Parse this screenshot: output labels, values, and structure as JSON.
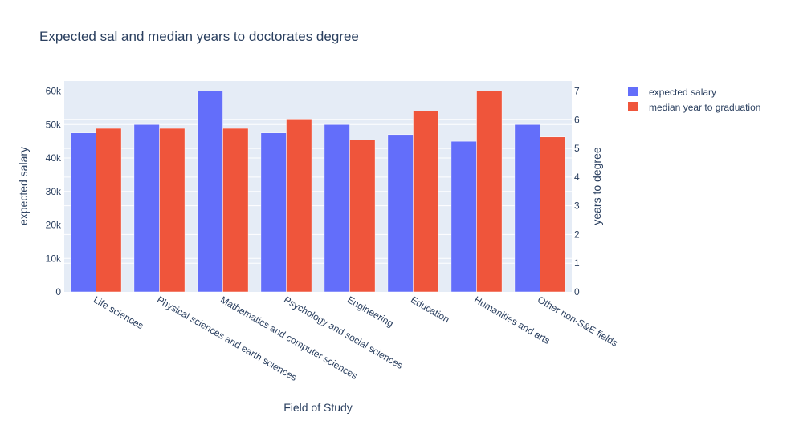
{
  "chart_data": {
    "type": "bar",
    "title": "Expected sal and median years to doctorates degree",
    "xlabel": "Field of Study",
    "ylabel": "expected salary",
    "y2label": "years to degree",
    "categories": [
      "Life sciences",
      "Physical sciences and earth sciences",
      "Mathematics and computer sciences",
      "Psychology and social sciences",
      "Engineering",
      "Education",
      "Humanities and arts",
      "Other non-S&E fields"
    ],
    "series": [
      {
        "name": "expected salary",
        "axis": "y",
        "color": "#636efa",
        "values": [
          47500,
          50000,
          60000,
          47500,
          50000,
          47000,
          45000,
          50000
        ]
      },
      {
        "name": "median year to graduation",
        "axis": "y2",
        "color": "#ef553b",
        "values": [
          5.7,
          5.7,
          5.7,
          6.0,
          5.3,
          6.3,
          7.0,
          5.4
        ]
      }
    ],
    "ylim": [
      0,
      63000
    ],
    "y2lim": [
      0,
      7.35
    ],
    "yticks": [
      0,
      10000,
      20000,
      30000,
      40000,
      50000,
      60000
    ],
    "ytick_labels": [
      "0",
      "10k",
      "20k",
      "30k",
      "40k",
      "50k",
      "60k"
    ],
    "y2ticks": [
      0,
      1,
      2,
      3,
      4,
      5,
      6,
      7
    ],
    "y2tick_labels": [
      "0",
      "1",
      "2",
      "3",
      "4",
      "5",
      "6",
      "7"
    ],
    "grid": true,
    "legend_position": "top-right",
    "plot_bg": "#e5ecf6"
  }
}
